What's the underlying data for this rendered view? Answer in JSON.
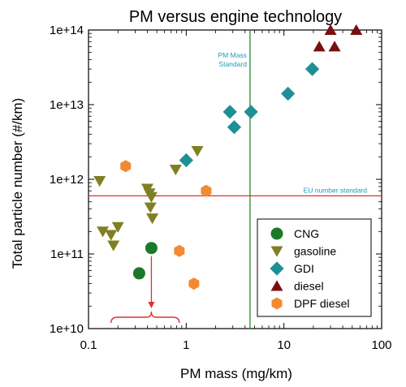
{
  "chart_data": {
    "type": "scatter",
    "title": "PM versus engine technology",
    "xlabel": "PM mass (mg/km)",
    "ylabel": "Total particle number (#/km)",
    "x_scale": "log",
    "y_scale": "log",
    "xlim": [
      0.1,
      100
    ],
    "ylim": [
      10000000000.0,
      100000000000000.0
    ],
    "x_ticks": [
      {
        "value": 0.1,
        "label": "0.1"
      },
      {
        "value": 1,
        "label": "1"
      },
      {
        "value": 10,
        "label": "10"
      },
      {
        "value": 100,
        "label": "100"
      }
    ],
    "y_ticks": [
      {
        "value": 10000000000.0,
        "label": "1e+10"
      },
      {
        "value": 100000000000.0,
        "label": "1e+11"
      },
      {
        "value": 1000000000000.0,
        "label": "1e+12"
      },
      {
        "value": 10000000000000.0,
        "label": "1e+13"
      },
      {
        "value": 100000000000000.0,
        "label": "1e+14"
      }
    ],
    "grid": false,
    "legend_position": "bottom-right",
    "series": [
      {
        "name": "CNG",
        "marker": "circle",
        "color": "#1a7a2a",
        "points": [
          {
            "x": 0.44,
            "y": 120000000000.0
          },
          {
            "x": 0.33,
            "y": 55000000000.0
          }
        ]
      },
      {
        "name": "gasoline",
        "marker": "triangle-down",
        "color": "#7f7f23",
        "points": [
          {
            "x": 0.13,
            "y": 950000000000.0
          },
          {
            "x": 0.14,
            "y": 200000000000.0
          },
          {
            "x": 0.17,
            "y": 180000000000.0
          },
          {
            "x": 0.18,
            "y": 130000000000.0
          },
          {
            "x": 0.2,
            "y": 230000000000.0
          },
          {
            "x": 0.4,
            "y": 750000000000.0
          },
          {
            "x": 0.42,
            "y": 650000000000.0
          },
          {
            "x": 0.43,
            "y": 420000000000.0
          },
          {
            "x": 0.44,
            "y": 580000000000.0
          },
          {
            "x": 0.45,
            "y": 300000000000.0
          },
          {
            "x": 0.78,
            "y": 1350000000000.0
          },
          {
            "x": 1.3,
            "y": 2400000000000.0
          }
        ]
      },
      {
        "name": "GDI",
        "marker": "diamond",
        "color": "#1f8f96",
        "points": [
          {
            "x": 1.0,
            "y": 1800000000000.0
          },
          {
            "x": 2.8,
            "y": 8000000000000.0
          },
          {
            "x": 3.1,
            "y": 5000000000000.0
          },
          {
            "x": 4.6,
            "y": 8000000000000.0
          },
          {
            "x": 11,
            "y": 14000000000000.0
          },
          {
            "x": 19.5,
            "y": 30000000000000.0
          }
        ]
      },
      {
        "name": "diesel",
        "marker": "triangle-up",
        "color": "#7a0f0f",
        "points": [
          {
            "x": 23,
            "y": 60000000000000.0
          },
          {
            "x": 30,
            "y": 100000000000000.0
          },
          {
            "x": 33,
            "y": 60000000000000.0
          },
          {
            "x": 55,
            "y": 100000000000000.0
          }
        ]
      },
      {
        "name": "DPF diesel",
        "marker": "hexagon",
        "color": "#f28a30",
        "points": [
          {
            "x": 0.24,
            "y": 1500000000000.0
          },
          {
            "x": 0.85,
            "y": 110000000000.0
          },
          {
            "x": 1.2,
            "y": 40000000000.0
          },
          {
            "x": 1.6,
            "y": 700000000000.0
          }
        ]
      }
    ],
    "reference_lines": [
      {
        "orientation": "horizontal",
        "value": 600000000000.0,
        "label": "EU number standard",
        "color": "#e03030"
      },
      {
        "orientation": "vertical",
        "value": 4.5,
        "label": "PM Mass\nStandard",
        "color": "#2e8b2e"
      }
    ],
    "annotations": [
      {
        "type": "brace",
        "x_range": [
          0.17,
          0.85
        ],
        "arrow_to": {
          "x": 0.44,
          "y": 120000000000.0
        },
        "color": "#e03030"
      }
    ]
  }
}
